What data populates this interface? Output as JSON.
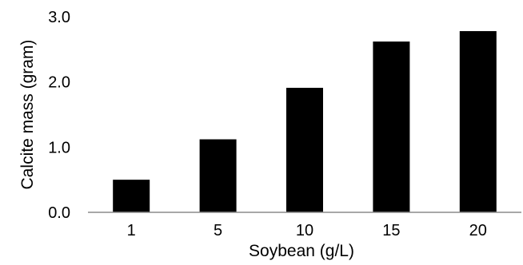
{
  "chart_data": {
    "type": "bar",
    "categories": [
      "1",
      "5",
      "10",
      "15",
      "20"
    ],
    "values": [
      0.5,
      1.12,
      1.91,
      2.62,
      2.78
    ],
    "xlabel": "Soybean (g/L)",
    "ylabel": "Calcite mass (gram)",
    "ylim": [
      0,
      3
    ],
    "yticks": [
      "0.0",
      "1.0",
      "2.0",
      "3.0"
    ],
    "grid": false,
    "legend": "none",
    "colors": {
      "bar": "#000000",
      "axis": "#8c8c8c",
      "text": "#000000"
    }
  }
}
